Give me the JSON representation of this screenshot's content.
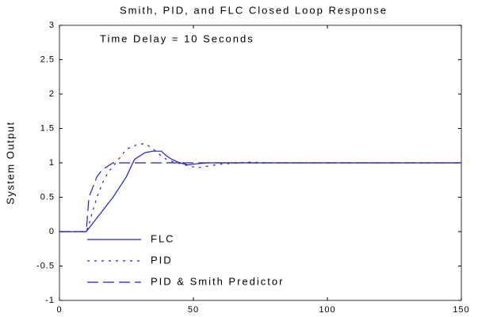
{
  "chart_data": {
    "type": "line",
    "title": "Smith, PID, and FLC Closed Loop Response",
    "ylabel": "System Output",
    "annotation": "Time Delay = 10 Seconds",
    "x": [
      0,
      10,
      11,
      12,
      14,
      16,
      18,
      20,
      22,
      25,
      28,
      30,
      32,
      35,
      38,
      40,
      42,
      45,
      48,
      50,
      52,
      55,
      60,
      70,
      80,
      100,
      120,
      150
    ],
    "series": [
      {
        "name": "FLC",
        "color": "#1f1fd6",
        "style": "solid",
        "values": [
          0,
          0,
          0.05,
          0.1,
          0.2,
          0.3,
          0.4,
          0.5,
          0.62,
          0.8,
          1.05,
          1.1,
          1.15,
          1.17,
          1.17,
          1.1,
          1.05,
          1.0,
          0.97,
          0.98,
          0.99,
          1,
          1,
          1,
          1,
          1,
          1,
          1
        ]
      },
      {
        "name": "PID",
        "color": "#1f1fd6",
        "style": "dotted",
        "values": [
          0,
          0,
          0.1,
          0.25,
          0.5,
          0.7,
          0.85,
          0.95,
          1.05,
          1.2,
          1.25,
          1.27,
          1.28,
          1.2,
          1.1,
          1.05,
          1.02,
          0.99,
          0.96,
          0.94,
          0.93,
          0.95,
          0.98,
          1.01,
          1,
          1,
          1,
          1
        ]
      },
      {
        "name": "PID & Smith Predictor",
        "color": "#1f1fd6",
        "style": "dashed",
        "values": [
          0,
          0,
          0.5,
          0.6,
          0.8,
          0.9,
          0.95,
          1,
          1,
          1,
          1,
          1,
          1,
          1,
          1,
          1,
          1,
          1,
          1,
          1,
          1,
          1,
          1,
          1,
          1,
          1,
          1,
          1
        ]
      }
    ],
    "xlim": [
      0,
      150
    ],
    "xticks": [
      0,
      50,
      100,
      150
    ],
    "ylim": [
      -1,
      3
    ],
    "yticks": [
      -1,
      -0.5,
      0,
      0.5,
      1,
      1.5,
      2,
      2.5,
      3
    ],
    "legend": "lower-left"
  }
}
